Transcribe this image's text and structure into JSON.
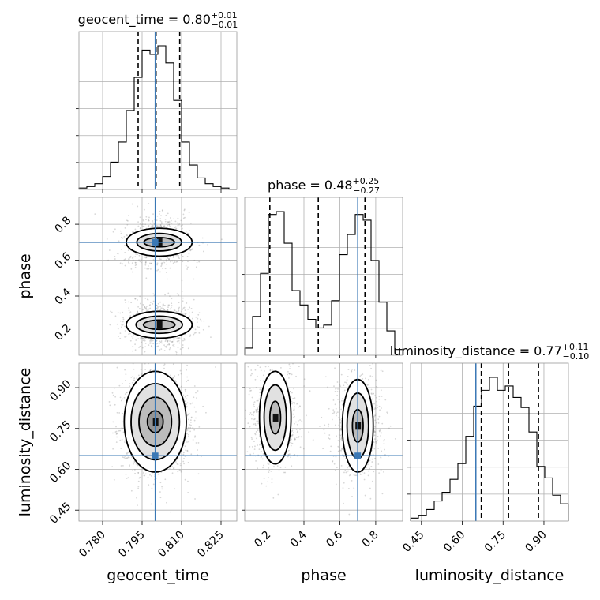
{
  "chart_data": {
    "type": "corner",
    "parameters": [
      "geocent_time",
      "phase",
      "luminosity_distance"
    ],
    "truths": {
      "geocent_time": 0.8,
      "phase": 0.7,
      "luminosity_distance": 0.65
    },
    "titles": [
      {
        "param": "geocent_time",
        "label": "geocent_time",
        "median": "0.80",
        "plus": "+0.01",
        "minus": "−0.01"
      },
      {
        "param": "phase",
        "label": "phase",
        "median": "0.48",
        "plus": "+0.25",
        "minus": "−0.27"
      },
      {
        "param": "luminosity_distance",
        "label": "luminosity_distance",
        "median": "0.77",
        "plus": "+0.11",
        "minus": "−0.10"
      }
    ],
    "axes": {
      "geocent_time": {
        "range": [
          0.771,
          0.831
        ],
        "ticks": [
          "0.780",
          "0.795",
          "0.810",
          "0.825"
        ],
        "label": "geocent_time"
      },
      "phase": {
        "range": [
          0.07,
          0.95
        ],
        "ticks": [
          "0.2",
          "0.4",
          "0.6",
          "0.8"
        ],
        "label": "phase"
      },
      "luminosity_distance": {
        "range": [
          0.41,
          0.99
        ],
        "ticks": [
          "0.45",
          "0.60",
          "0.75",
          "0.90"
        ],
        "label": "luminosity_distance"
      }
    },
    "marginals": [
      {
        "param": "geocent_time",
        "quantiles": [
          0.7935,
          0.8003,
          0.8093
        ],
        "bins": [
          0.771,
          0.774,
          0.777,
          0.78,
          0.783,
          0.786,
          0.789,
          0.792,
          0.795,
          0.798,
          0.801,
          0.804,
          0.807,
          0.81,
          0.813,
          0.816,
          0.819,
          0.822,
          0.825,
          0.828,
          0.831
        ],
        "values": [
          0.01,
          0.02,
          0.04,
          0.09,
          0.19,
          0.33,
          0.55,
          0.78,
          0.97,
          0.94,
          1.0,
          0.88,
          0.62,
          0.33,
          0.17,
          0.08,
          0.04,
          0.02,
          0.01,
          0.0
        ]
      },
      {
        "param": "phase",
        "quantiles": [
          0.21,
          0.48,
          0.74
        ],
        "bins": [
          0.07,
          0.114,
          0.158,
          0.202,
          0.246,
          0.29,
          0.334,
          0.378,
          0.422,
          0.466,
          0.51,
          0.554,
          0.598,
          0.642,
          0.686,
          0.73,
          0.774,
          0.818,
          0.862,
          0.906,
          0.95
        ],
        "values": [
          0.05,
          0.27,
          0.57,
          0.98,
          1.0,
          0.78,
          0.45,
          0.35,
          0.25,
          0.19,
          0.21,
          0.38,
          0.7,
          0.84,
          0.98,
          0.94,
          0.66,
          0.37,
          0.17,
          0.04
        ]
      },
      {
        "param": "luminosity_distance",
        "quantiles": [
          0.67,
          0.77,
          0.88
        ],
        "bins": [
          0.41,
          0.439,
          0.468,
          0.497,
          0.526,
          0.555,
          0.584,
          0.613,
          0.642,
          0.671,
          0.7,
          0.729,
          0.758,
          0.787,
          0.816,
          0.845,
          0.874,
          0.903,
          0.932,
          0.961,
          0.99
        ],
        "values": [
          0.02,
          0.04,
          0.08,
          0.14,
          0.2,
          0.29,
          0.4,
          0.59,
          0.8,
          0.91,
          1.0,
          0.91,
          0.94,
          0.86,
          0.79,
          0.62,
          0.38,
          0.3,
          0.18,
          0.12
        ]
      }
    ],
    "joint": [
      {
        "x": "geocent_time",
        "y": "phase",
        "modes": [
          {
            "x": 0.8015,
            "y": 0.7,
            "sx": 0.0055,
            "sy": 0.062,
            "weight": 0.5
          },
          {
            "x": 0.8015,
            "y": 0.24,
            "sx": 0.0055,
            "sy": 0.058,
            "weight": 0.5
          }
        ],
        "contours": [
          {
            "mode": 0,
            "levels": [
              {
                "rx": 0.0058,
                "ry": 0.026
              },
              {
                "rx": 0.0085,
                "ry": 0.049
              },
              {
                "rx": 0.0125,
                "ry": 0.078
              }
            ]
          },
          {
            "mode": 1,
            "levels": [
              {
                "rx": 0.006,
                "ry": 0.026
              },
              {
                "rx": 0.0088,
                "ry": 0.048
              },
              {
                "rx": 0.0125,
                "ry": 0.075
              }
            ]
          }
        ]
      },
      {
        "x": "geocent_time",
        "y": "luminosity_distance",
        "modes": [
          {
            "x": 0.8,
            "y": 0.775,
            "sx": 0.0055,
            "sy": 0.08,
            "weight": 1.0
          }
        ],
        "contours": [
          {
            "mode": 0,
            "levels": [
              {
                "rx": 0.003,
                "ry": 0.04
              },
              {
                "rx": 0.0062,
                "ry": 0.09
              },
              {
                "rx": 0.0092,
                "ry": 0.14
              },
              {
                "rx": 0.0118,
                "ry": 0.185
              }
            ]
          }
        ]
      },
      {
        "x": "phase",
        "y": "luminosity_distance",
        "modes": [
          {
            "x": 0.24,
            "y": 0.79,
            "sx": 0.06,
            "sy": 0.08,
            "weight": 0.5
          },
          {
            "x": 0.7,
            "y": 0.76,
            "sx": 0.06,
            "sy": 0.08,
            "weight": 0.5
          }
        ],
        "contours": [
          {
            "mode": 0,
            "levels": [
              {
                "rx": 0.03,
                "ry": 0.06
              },
              {
                "rx": 0.062,
                "ry": 0.12
              },
              {
                "rx": 0.088,
                "ry": 0.17
              }
            ]
          },
          {
            "mode": 1,
            "levels": [
              {
                "rx": 0.03,
                "ry": 0.06
              },
              {
                "rx": 0.06,
                "ry": 0.12
              },
              {
                "rx": 0.086,
                "ry": 0.17
              }
            ]
          }
        ]
      }
    ],
    "grid": true
  }
}
